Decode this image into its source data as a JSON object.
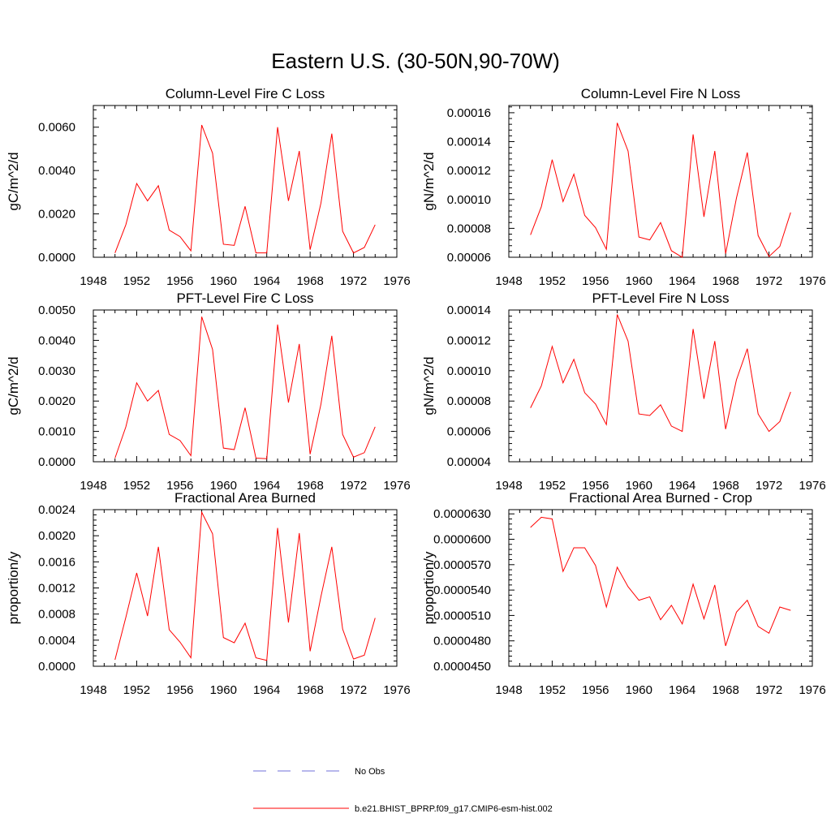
{
  "title": "Eastern U.S. (30-50N,90-70W)",
  "colors": {
    "model": "#ff0000",
    "obs": "#6f6fd8",
    "axis": "#000000"
  },
  "legend": [
    {
      "label": "No Obs",
      "style": "dashed",
      "color": "#6f6fd8"
    },
    {
      "label": "b.e21.BHIST_BPRP.f09_g17.CMIP6-esm-hist.002",
      "style": "solid",
      "color": "#ff0000"
    }
  ],
  "chart_data": [
    {
      "type": "line",
      "title": "Column-Level Fire C Loss",
      "ylabel": "gC/m^2/d",
      "xlim": [
        1948,
        1976
      ],
      "ylim": [
        0,
        0.007
      ],
      "xticks": [
        "1948",
        "1952",
        "1956",
        "1960",
        "1964",
        "1968",
        "1972",
        "1976"
      ],
      "yticks": [
        {
          "v": 0,
          "label": "0.0000"
        },
        {
          "v": 0.002,
          "label": "0.0020"
        },
        {
          "v": 0.004,
          "label": "0.0040"
        },
        {
          "v": 0.006,
          "label": "0.0060"
        }
      ],
      "x": [
        1950,
        1951,
        1952,
        1953,
        1954,
        1955,
        1956,
        1957,
        1958,
        1959,
        1960,
        1961,
        1962,
        1963,
        1964,
        1965,
        1966,
        1967,
        1968,
        1969,
        1970,
        1971,
        1972,
        1973,
        1974
      ],
      "series": [
        {
          "values": [
            0.0002,
            0.0015,
            0.0034,
            0.0026,
            0.0033,
            0.00125,
            0.00095,
            0.0003,
            0.0061,
            0.0048,
            0.0006,
            0.00055,
            0.00235,
            0.0002,
            0.0002,
            0.006,
            0.0026,
            0.0049,
            0.00035,
            0.0025,
            0.0057,
            0.0012,
            0.0002,
            0.00045,
            0.0015
          ]
        }
      ]
    },
    {
      "type": "line",
      "title": "Column-Level Fire N Loss",
      "ylabel": "gN/m^2/d",
      "xlim": [
        1948,
        1976
      ],
      "ylim": [
        6e-05,
        0.000165
      ],
      "xticks": [
        "1948",
        "1952",
        "1956",
        "1960",
        "1964",
        "1968",
        "1972",
        "1976"
      ],
      "yticks": [
        {
          "v": 6e-05,
          "label": "0.00006"
        },
        {
          "v": 8e-05,
          "label": "0.00008"
        },
        {
          "v": 0.0001,
          "label": "0.00010"
        },
        {
          "v": 0.00012,
          "label": "0.00012"
        },
        {
          "v": 0.00014,
          "label": "0.00014"
        },
        {
          "v": 0.00016,
          "label": "0.00016"
        }
      ],
      "x": [
        1950,
        1951,
        1952,
        1953,
        1954,
        1955,
        1956,
        1957,
        1958,
        1959,
        1960,
        1961,
        1962,
        1963,
        1964,
        1965,
        1966,
        1967,
        1968,
        1969,
        1970,
        1971,
        1972,
        1973,
        1974
      ],
      "series": [
        {
          "values": [
            7.55e-05,
            9.5e-05,
            0.0001275,
            9.85e-05,
            0.0001175,
            8.9e-05,
            8.05e-05,
            6.55e-05,
            0.000153,
            0.0001335,
            7.4e-05,
            7.2e-05,
            8.4e-05,
            6.45e-05,
            6e-05,
            0.000145,
            8.8e-05,
            0.0001335,
            6.25e-05,
            0.000101,
            0.0001325,
            7.5e-05,
            6.05e-05,
            6.75e-05,
            9.1e-05
          ]
        }
      ]
    },
    {
      "type": "line",
      "title": "PFT-Level Fire C Loss",
      "ylabel": "gC/m^2/d",
      "xlim": [
        1948,
        1976
      ],
      "ylim": [
        0,
        0.005
      ],
      "xticks": [
        "1948",
        "1952",
        "1956",
        "1960",
        "1964",
        "1968",
        "1972",
        "1976"
      ],
      "yticks": [
        {
          "v": 0,
          "label": "0.0000"
        },
        {
          "v": 0.001,
          "label": "0.0010"
        },
        {
          "v": 0.002,
          "label": "0.0020"
        },
        {
          "v": 0.003,
          "label": "0.0030"
        },
        {
          "v": 0.004,
          "label": "0.0040"
        },
        {
          "v": 0.005,
          "label": "0.0050"
        }
      ],
      "x": [
        1950,
        1951,
        1952,
        1953,
        1954,
        1955,
        1956,
        1957,
        1958,
        1959,
        1960,
        1961,
        1962,
        1963,
        1964,
        1965,
        1966,
        1967,
        1968,
        1969,
        1970,
        1971,
        1972,
        1973,
        1974
      ],
      "series": [
        {
          "values": [
            0.00012,
            0.00115,
            0.0026,
            0.002,
            0.00235,
            0.0009,
            0.0007,
            0.0002,
            0.00478,
            0.0037,
            0.00045,
            0.0004,
            0.00178,
            0.00012,
            0.0001,
            0.00452,
            0.00195,
            0.00388,
            0.00025,
            0.0019,
            0.00415,
            0.0009,
            0.00015,
            0.0003,
            0.00115
          ]
        }
      ]
    },
    {
      "type": "line",
      "title": "PFT-Level Fire N Loss",
      "ylabel": "gN/m^2/d",
      "xlim": [
        1948,
        1976
      ],
      "ylim": [
        4e-05,
        0.00014
      ],
      "xticks": [
        "1948",
        "1952",
        "1956",
        "1960",
        "1964",
        "1968",
        "1972",
        "1976"
      ],
      "yticks": [
        {
          "v": 4e-05,
          "label": "0.00004"
        },
        {
          "v": 6e-05,
          "label": "0.00006"
        },
        {
          "v": 8e-05,
          "label": "0.00008"
        },
        {
          "v": 0.0001,
          "label": "0.00010"
        },
        {
          "v": 0.00012,
          "label": "0.00012"
        },
        {
          "v": 0.00014,
          "label": "0.00014"
        }
      ],
      "x": [
        1950,
        1951,
        1952,
        1953,
        1954,
        1955,
        1956,
        1957,
        1958,
        1959,
        1960,
        1961,
        1962,
        1963,
        1964,
        1965,
        1966,
        1967,
        1968,
        1969,
        1970,
        1971,
        1972,
        1973,
        1974
      ],
      "series": [
        {
          "values": [
            7.55e-05,
            9e-05,
            0.000116,
            9.2e-05,
            0.0001075,
            8.55e-05,
            7.8e-05,
            6.45e-05,
            0.000137,
            0.0001195,
            7.15e-05,
            7.05e-05,
            7.75e-05,
            6.35e-05,
            6e-05,
            0.0001275,
            8.15e-05,
            0.0001195,
            6.15e-05,
            9.4e-05,
            0.0001145,
            7.15e-05,
            6e-05,
            6.65e-05,
            8.6e-05
          ]
        }
      ]
    },
    {
      "type": "line",
      "title": "Fractional Area Burned",
      "ylabel": "proportion/y",
      "xlim": [
        1948,
        1976
      ],
      "ylim": [
        0,
        0.0024
      ],
      "xticks": [
        "1948",
        "1952",
        "1956",
        "1960",
        "1964",
        "1968",
        "1972",
        "1976"
      ],
      "yticks": [
        {
          "v": 0,
          "label": "0.0000"
        },
        {
          "v": 0.0004,
          "label": "0.0004"
        },
        {
          "v": 0.0008,
          "label": "0.0008"
        },
        {
          "v": 0.0012,
          "label": "0.0012"
        },
        {
          "v": 0.0016,
          "label": "0.0016"
        },
        {
          "v": 0.002,
          "label": "0.0020"
        },
        {
          "v": 0.0024,
          "label": "0.0024"
        }
      ],
      "x": [
        1950,
        1951,
        1952,
        1953,
        1954,
        1955,
        1956,
        1957,
        1958,
        1959,
        1960,
        1961,
        1962,
        1963,
        1964,
        1965,
        1966,
        1967,
        1968,
        1969,
        1970,
        1971,
        1972,
        1973,
        1974
      ],
      "series": [
        {
          "values": [
            0.0001,
            0.00075,
            0.00143,
            0.00077,
            0.00183,
            0.00056,
            0.00037,
            0.00013,
            0.00236,
            0.00203,
            0.00044,
            0.00036,
            0.00066,
            0.00013,
            9e-05,
            0.00212,
            0.00067,
            0.00204,
            0.00023,
            0.00107,
            0.00183,
            0.00057,
            0.00011,
            0.00017,
            0.00074
          ]
        }
      ]
    },
    {
      "type": "line",
      "title": "Fractional Area Burned - Crop",
      "ylabel": "proportion/y",
      "xlim": [
        1948,
        1976
      ],
      "ylim": [
        4.5e-05,
        6.35e-05
      ],
      "xticks": [
        "1948",
        "1952",
        "1956",
        "1960",
        "1964",
        "1968",
        "1972",
        "1976"
      ],
      "yticks": [
        {
          "v": 4.5e-05,
          "label": "0.0000450"
        },
        {
          "v": 4.8e-05,
          "label": "0.0000480"
        },
        {
          "v": 5.1e-05,
          "label": "0.0000510"
        },
        {
          "v": 5.4e-05,
          "label": "0.0000540"
        },
        {
          "v": 5.7e-05,
          "label": "0.0000570"
        },
        {
          "v": 6e-05,
          "label": "0.0000600"
        },
        {
          "v": 6.3e-05,
          "label": "0.0000630"
        }
      ],
      "x": [
        1950,
        1951,
        1952,
        1953,
        1954,
        1955,
        1956,
        1957,
        1958,
        1959,
        1960,
        1961,
        1962,
        1963,
        1964,
        1965,
        1966,
        1967,
        1968,
        1969,
        1970,
        1971,
        1972,
        1973,
        1974
      ],
      "series": [
        {
          "values": [
            6.14e-05,
            6.26e-05,
            6.24e-05,
            5.62e-05,
            5.9e-05,
            5.9e-05,
            5.69e-05,
            5.2e-05,
            5.67e-05,
            5.44e-05,
            5.28e-05,
            5.32e-05,
            5.05e-05,
            5.22e-05,
            5e-05,
            5.47e-05,
            5.06e-05,
            5.46e-05,
            4.74e-05,
            5.14e-05,
            5.28e-05,
            4.97e-05,
            4.89e-05,
            5.2e-05,
            5.16e-05
          ]
        }
      ]
    }
  ]
}
